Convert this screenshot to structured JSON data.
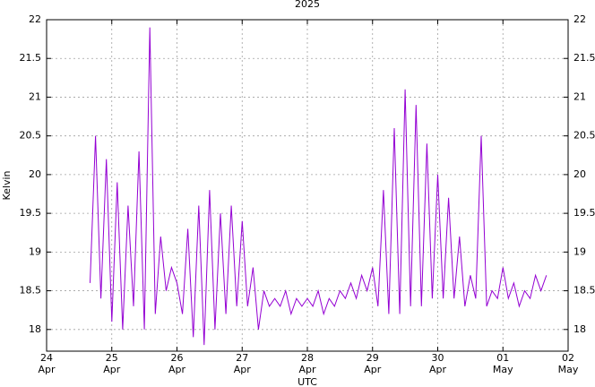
{
  "chart_data": {
    "type": "line",
    "title": "2025",
    "ylabel": "Kelvin",
    "xlabel": "UTC",
    "x": [
      "2025-04-24T16:00",
      "2025-04-24T18:00",
      "2025-04-24T20:00",
      "2025-04-24T22:00",
      "2025-04-25T00:00",
      "2025-04-25T02:00",
      "2025-04-25T04:00",
      "2025-04-25T06:00",
      "2025-04-25T08:00",
      "2025-04-25T10:00",
      "2025-04-25T12:00",
      "2025-04-25T14:00",
      "2025-04-25T16:00",
      "2025-04-25T18:00",
      "2025-04-25T20:00",
      "2025-04-25T22:00",
      "2025-04-26T00:00",
      "2025-04-26T02:00",
      "2025-04-26T04:00",
      "2025-04-26T06:00",
      "2025-04-26T08:00",
      "2025-04-26T10:00",
      "2025-04-26T12:00",
      "2025-04-26T14:00",
      "2025-04-26T16:00",
      "2025-04-26T18:00",
      "2025-04-26T20:00",
      "2025-04-26T22:00",
      "2025-04-27T00:00",
      "2025-04-27T02:00",
      "2025-04-27T04:00",
      "2025-04-27T06:00",
      "2025-04-27T08:00",
      "2025-04-27T10:00",
      "2025-04-27T12:00",
      "2025-04-27T14:00",
      "2025-04-27T16:00",
      "2025-04-27T18:00",
      "2025-04-27T20:00",
      "2025-04-27T22:00",
      "2025-04-28T00:00",
      "2025-04-28T02:00",
      "2025-04-28T04:00",
      "2025-04-28T06:00",
      "2025-04-28T08:00",
      "2025-04-28T10:00",
      "2025-04-28T12:00",
      "2025-04-28T14:00",
      "2025-04-28T16:00",
      "2025-04-28T18:00",
      "2025-04-28T20:00",
      "2025-04-28T22:00",
      "2025-04-29T00:00",
      "2025-04-29T02:00",
      "2025-04-29T04:00",
      "2025-04-29T06:00",
      "2025-04-29T08:00",
      "2025-04-29T10:00",
      "2025-04-29T12:00",
      "2025-04-29T14:00",
      "2025-04-29T16:00",
      "2025-04-29T18:00",
      "2025-04-29T20:00",
      "2025-04-29T22:00",
      "2025-04-30T00:00",
      "2025-04-30T02:00",
      "2025-04-30T04:00",
      "2025-04-30T06:00",
      "2025-04-30T08:00",
      "2025-04-30T10:00",
      "2025-04-30T12:00",
      "2025-04-30T14:00",
      "2025-04-30T16:00",
      "2025-04-30T18:00",
      "2025-04-30T20:00",
      "2025-04-30T22:00",
      "2025-05-01T00:00",
      "2025-05-01T02:00",
      "2025-05-01T04:00",
      "2025-05-01T06:00",
      "2025-05-01T08:00",
      "2025-05-01T10:00",
      "2025-05-01T12:00",
      "2025-05-01T14:00",
      "2025-05-01T16:00"
    ],
    "series": [
      {
        "color": "#9400d3",
        "values": [
          18.6,
          20.5,
          18.4,
          20.2,
          18.1,
          19.9,
          18.0,
          19.6,
          18.3,
          20.3,
          18.0,
          21.9,
          18.2,
          19.2,
          18.5,
          18.8,
          18.6,
          18.2,
          19.3,
          17.9,
          19.6,
          17.8,
          19.8,
          18.0,
          19.5,
          18.2,
          19.6,
          18.3,
          19.4,
          18.3,
          18.8,
          18.0,
          18.5,
          18.3,
          18.4,
          18.3,
          18.5,
          18.2,
          18.4,
          18.3,
          18.4,
          18.3,
          18.5,
          18.2,
          18.4,
          18.3,
          18.5,
          18.4,
          18.6,
          18.4,
          18.7,
          18.5,
          18.8,
          18.3,
          19.8,
          18.2,
          20.6,
          18.2,
          21.1,
          18.3,
          20.9,
          18.3,
          20.4,
          18.4,
          20.0,
          18.4,
          19.7,
          18.4,
          19.2,
          18.3,
          18.7,
          18.4,
          20.5,
          18.3,
          18.5,
          18.4,
          18.8,
          18.4,
          18.6,
          18.3,
          18.5,
          18.4,
          18.7,
          18.5,
          18.7
        ]
      }
    ],
    "xlim": [
      "2025-04-24T00:00",
      "2025-05-02T00:00"
    ],
    "xticks": [
      {
        "value": "2025-04-24T00:00",
        "label": "24\nApr"
      },
      {
        "value": "2025-04-25T00:00",
        "label": "25\nApr"
      },
      {
        "value": "2025-04-26T00:00",
        "label": "26\nApr"
      },
      {
        "value": "2025-04-27T00:00",
        "label": "27\nApr"
      },
      {
        "value": "2025-04-28T00:00",
        "label": "28\nApr"
      },
      {
        "value": "2025-04-29T00:00",
        "label": "29\nApr"
      },
      {
        "value": "2025-04-30T00:00",
        "label": "30\nApr"
      },
      {
        "value": "2025-05-01T00:00",
        "label": "01\nMay"
      },
      {
        "value": "2025-05-02T00:00",
        "label": "02\nMay"
      }
    ],
    "ylim": [
      17.72,
      22
    ],
    "yticks": [
      18,
      18.5,
      19,
      19.5,
      20,
      20.5,
      21,
      21.5,
      22
    ],
    "grid": true
  }
}
